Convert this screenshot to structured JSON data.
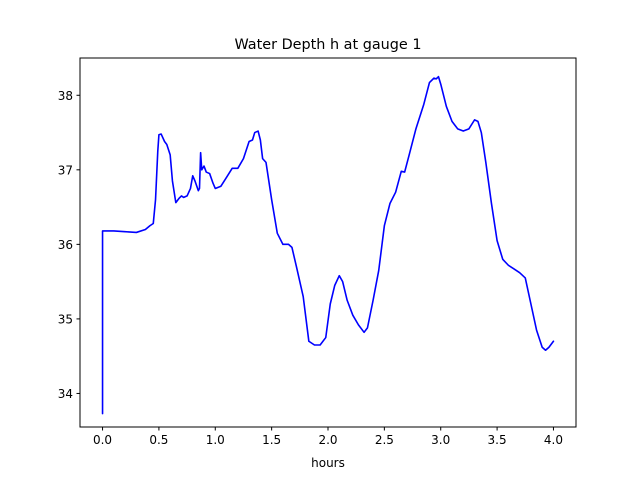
{
  "chart_data": {
    "type": "line",
    "title": "Water Depth h at gauge 1",
    "xlabel": "hours",
    "ylabel": "",
    "xlim": [
      -0.2,
      4.2
    ],
    "ylim": [
      33.55,
      38.5
    ],
    "xticks": [
      0.0,
      0.5,
      1.0,
      1.5,
      2.0,
      2.5,
      3.0,
      3.5,
      4.0
    ],
    "xtick_labels": [
      "0.0",
      "0.5",
      "1.0",
      "1.5",
      "2.0",
      "2.5",
      "3.0",
      "3.5",
      "4.0"
    ],
    "yticks": [
      34,
      35,
      36,
      37,
      38
    ],
    "ytick_labels": [
      "34",
      "35",
      "36",
      "37",
      "38"
    ],
    "grid": false,
    "series": [
      {
        "color": "#0000ff",
        "x": [
          0.0,
          0.0,
          0.02,
          0.1,
          0.2,
          0.3,
          0.38,
          0.42,
          0.45,
          0.47,
          0.49,
          0.5,
          0.52,
          0.55,
          0.57,
          0.6,
          0.62,
          0.65,
          0.68,
          0.7,
          0.72,
          0.75,
          0.78,
          0.8,
          0.82,
          0.85,
          0.86,
          0.87,
          0.88,
          0.9,
          0.92,
          0.95,
          0.98,
          1.0,
          1.05,
          1.1,
          1.15,
          1.2,
          1.25,
          1.3,
          1.33,
          1.35,
          1.38,
          1.4,
          1.42,
          1.45,
          1.5,
          1.55,
          1.6,
          1.65,
          1.68,
          1.72,
          1.78,
          1.83,
          1.88,
          1.93,
          1.98,
          2.02,
          2.06,
          2.1,
          2.13,
          2.17,
          2.22,
          2.27,
          2.32,
          2.35,
          2.4,
          2.45,
          2.5,
          2.55,
          2.6,
          2.65,
          2.68,
          2.72,
          2.78,
          2.85,
          2.9,
          2.94,
          2.96,
          2.98,
          3.0,
          3.05,
          3.1,
          3.15,
          3.2,
          3.25,
          3.3,
          3.33,
          3.36,
          3.4,
          3.45,
          3.5,
          3.55,
          3.6,
          3.65,
          3.7,
          3.75,
          3.8,
          3.85,
          3.9,
          3.93,
          3.96,
          4.0
        ],
        "y": [
          33.73,
          36.18,
          36.18,
          36.18,
          36.17,
          36.16,
          36.2,
          36.25,
          36.28,
          36.6,
          37.25,
          37.47,
          37.48,
          37.38,
          37.34,
          37.2,
          36.85,
          36.56,
          36.62,
          36.65,
          36.63,
          36.65,
          36.75,
          36.92,
          36.85,
          36.72,
          36.75,
          37.23,
          37.0,
          37.05,
          36.97,
          36.95,
          36.82,
          36.75,
          36.78,
          36.9,
          37.02,
          37.02,
          37.15,
          37.38,
          37.4,
          37.5,
          37.52,
          37.4,
          37.15,
          37.1,
          36.6,
          36.15,
          36.0,
          36.0,
          35.96,
          35.7,
          35.3,
          34.7,
          34.65,
          34.65,
          34.75,
          35.2,
          35.45,
          35.58,
          35.5,
          35.25,
          35.05,
          34.92,
          34.82,
          34.88,
          35.25,
          35.65,
          36.25,
          36.55,
          36.7,
          36.98,
          36.97,
          37.2,
          37.55,
          37.88,
          38.17,
          38.23,
          38.22,
          38.25,
          38.15,
          37.85,
          37.65,
          37.55,
          37.52,
          37.55,
          37.67,
          37.65,
          37.5,
          37.1,
          36.55,
          36.05,
          35.8,
          35.72,
          35.67,
          35.62,
          35.55,
          35.2,
          34.85,
          34.62,
          34.58,
          34.62,
          34.7
        ]
      }
    ]
  }
}
